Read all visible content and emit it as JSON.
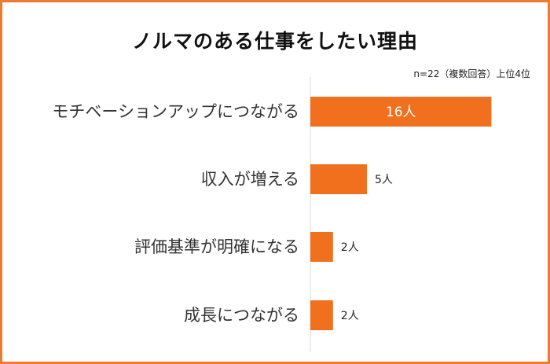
{
  "chart_data": {
    "type": "bar",
    "orientation": "horizontal",
    "title": "ノルマのある仕事をしたい理由",
    "subtitle": "n=22（複数回答）上位4位",
    "categories": [
      "モチベーションアップにつながる",
      "収入が増える",
      "評価基準が明確になる",
      "成長につながる"
    ],
    "values": [
      16,
      5,
      2,
      2
    ],
    "value_labels": [
      "16人",
      "5人",
      "2人",
      "2人"
    ],
    "xlim": [
      0,
      22
    ],
    "grid": false,
    "bar_color": "#f0701e",
    "frame_color": "#ee7a2f"
  }
}
